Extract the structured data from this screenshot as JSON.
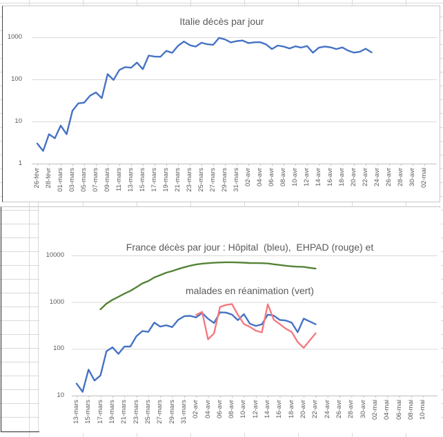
{
  "style": {
    "text_color": "#595959",
    "gridline_color": "#d9d9d9",
    "axis_color": "#bfbfbf",
    "sheet_grid_color": "#d9d9d9"
  },
  "chart_data": [
    {
      "type": "line",
      "title": "Italie décès par jour",
      "yscale": "log",
      "ylim": [
        1,
        1000
      ],
      "grid": "horizontal-only",
      "legend_position": "none",
      "y_ticks": [
        1000,
        100,
        10,
        1
      ],
      "x_tick_interval_days": 2,
      "x_ticklabels": [
        "26-févr",
        "28-févr",
        "01-mars",
        "03-mars",
        "05-mars",
        "07-mars",
        "09-mars",
        "11-mars",
        "13-mars",
        "15-mars",
        "17-mars",
        "19-mars",
        "21-mars",
        "23-mars",
        "25-mars",
        "27-mars",
        "29-mars",
        "31-mars",
        "02-avr",
        "04-avr",
        "06-avr",
        "08-avr",
        "10-avr",
        "12-avr",
        "14-avr",
        "16-avr",
        "18-avr",
        "20-avr",
        "22-avr",
        "24-avr",
        "26-avr",
        "28-avr",
        "30-avr",
        "02-mai"
      ],
      "series": [
        {
          "name": "Italie décès par jour",
          "color": "#4472C4",
          "start_label": "26-févr",
          "start_offset_days": 0,
          "values": [
            3,
            2,
            5,
            4,
            8,
            5,
            18,
            27,
            28,
            41,
            49,
            36,
            133,
            97,
            168,
            196,
            189,
            250,
            175,
            368,
            349,
            345,
            475,
            427,
            627,
            793,
            651,
            601,
            743,
            683,
            662,
            969,
            889,
            756,
            812,
            837,
            727,
            760,
            766,
            681,
            525,
            636,
            604,
            542,
            610,
            570,
            619,
            431,
            566,
            602,
            578,
            525,
            575,
            482,
            433,
            454,
            534,
            437
          ]
        }
      ]
    },
    {
      "type": "line",
      "title_lines": [
        "France décès par jour : Hôpital  (bleu),  EHPAD (rouge) et",
        "malades en réanimation (vert)"
      ],
      "yscale": "log",
      "ylim": [
        10,
        10000
      ],
      "grid": "horizontal-only",
      "legend_position": "none",
      "y_ticks": [
        10000,
        1000,
        100,
        10
      ],
      "x_tick_interval_days": 2,
      "x_ticklabels": [
        "13-mars",
        "15-mars",
        "17-mars",
        "19-mars",
        "21-mars",
        "23-mars",
        "25-mars",
        "27-mars",
        "29-mars",
        "31-mars",
        "02-avr",
        "04-avr",
        "06-avr",
        "08-avr",
        "10-avr",
        "12-avr",
        "14-avr",
        "16-avr",
        "18-avr",
        "20-avr",
        "22-avr",
        "24-avr",
        "26-avr",
        "28-avr",
        "30-avr",
        "02-mai",
        "04-mai",
        "06-mai",
        "08-mai",
        "10-mai"
      ],
      "series": [
        {
          "name": "Hôpital (bleu)",
          "color": "#4472C4",
          "start_label": "13-mars",
          "start_offset_days": 0,
          "values": [
            18,
            12,
            36,
            21,
            27,
            89,
            108,
            78,
            112,
            112,
            186,
            240,
            231,
            365,
            299,
            319,
            292,
            418,
            499,
            509,
            471,
            588,
            441,
            357,
            605,
            597,
            541,
            412,
            554,
            345,
            310,
            335,
            541,
            514,
            417,
            405,
            364,
            227,
            444,
            387,
            336
          ]
        },
        {
          "name": "EHPAD (rouge)",
          "color": "#F4797F",
          "start_label": "02-avr",
          "start_offset_days": 20,
          "values": [
            530,
            620,
            160,
            215,
            790,
            870,
            910,
            535,
            340,
            295,
            245,
            225,
            900,
            420,
            340,
            270,
            230,
            140,
            105,
            150,
            215
          ]
        },
        {
          "name": "malades en réanimation (vert)",
          "color": "#548235",
          "start_label": "17-mars",
          "start_offset_days": 4,
          "values": [
            700,
            930,
            1120,
            1300,
            1525,
            1746,
            2082,
            2516,
            2827,
            3375,
            3787,
            4273,
            4632,
            5107,
            5565,
            6017,
            6399,
            6662,
            6838,
            6978,
            7072,
            7131,
            7148,
            7066,
            7004,
            6883,
            6845,
            6821,
            6730,
            6457,
            6248,
            6027,
            5833,
            5744,
            5683,
            5433,
            5218
          ]
        }
      ]
    }
  ]
}
